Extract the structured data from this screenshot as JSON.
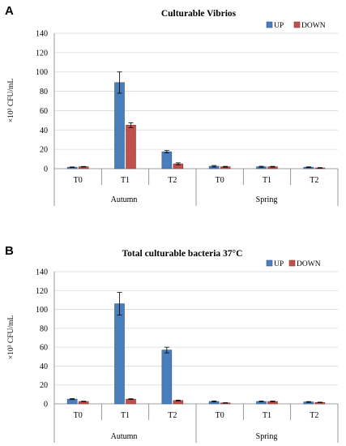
{
  "colors": {
    "up": "#4a7ebb",
    "up_stroke": "#2e5a8e",
    "down": "#c0504d",
    "down_stroke": "#8c3836",
    "grid": "#d9d9d9",
    "axis": "#7f7f7f"
  },
  "chart_data": [
    {
      "panel": "A",
      "type": "bar",
      "title": "Culturable Vibrios",
      "ylabel": "×10³ CFU/mL",
      "xlabel": "",
      "ylim": [
        0,
        140
      ],
      "yticks": [
        "0",
        "20",
        "40",
        "60",
        "80",
        "100",
        "120",
        "140"
      ],
      "grid": true,
      "legend_placement": "top-right",
      "categories": [
        "T0",
        "T1",
        "T2",
        "T0",
        "T1",
        "T2"
      ],
      "groups": [
        "Autumn",
        "Spring"
      ],
      "series": [
        {
          "name": "UP",
          "values": [
            1.5,
            89,
            17.5,
            2.5,
            2,
            1.5
          ],
          "errors": [
            0.3,
            11,
            1.2,
            0.8,
            0.5,
            0.4
          ]
        },
        {
          "name": "DOWN",
          "values": [
            2,
            45,
            5,
            2,
            2,
            0.8
          ],
          "errors": [
            0.3,
            2.5,
            1.0,
            0.4,
            0.4,
            0.3
          ]
        }
      ]
    },
    {
      "panel": "B",
      "type": "bar",
      "title": "Total culturable bacteria 37°C",
      "ylabel": "×10³ CFU/mL",
      "xlabel": "",
      "ylim": [
        0,
        140
      ],
      "yticks": [
        "0",
        "20",
        "40",
        "60",
        "80",
        "100",
        "120",
        "140"
      ],
      "grid": true,
      "legend_placement": "top-right",
      "categories": [
        "T0",
        "T1",
        "T2",
        "T0",
        "T1",
        "T2"
      ],
      "groups": [
        "Autumn",
        "Spring"
      ],
      "series": [
        {
          "name": "UP",
          "values": [
            5,
            106,
            57,
            2.5,
            2.5,
            2
          ],
          "errors": [
            0.5,
            12,
            3,
            0.5,
            0.4,
            0.4
          ]
        },
        {
          "name": "DOWN",
          "values": [
            2.5,
            5,
            3.5,
            1,
            2.5,
            1.5
          ],
          "errors": [
            0.3,
            0.4,
            0.4,
            0.2,
            0.4,
            0.3
          ]
        }
      ]
    }
  ]
}
